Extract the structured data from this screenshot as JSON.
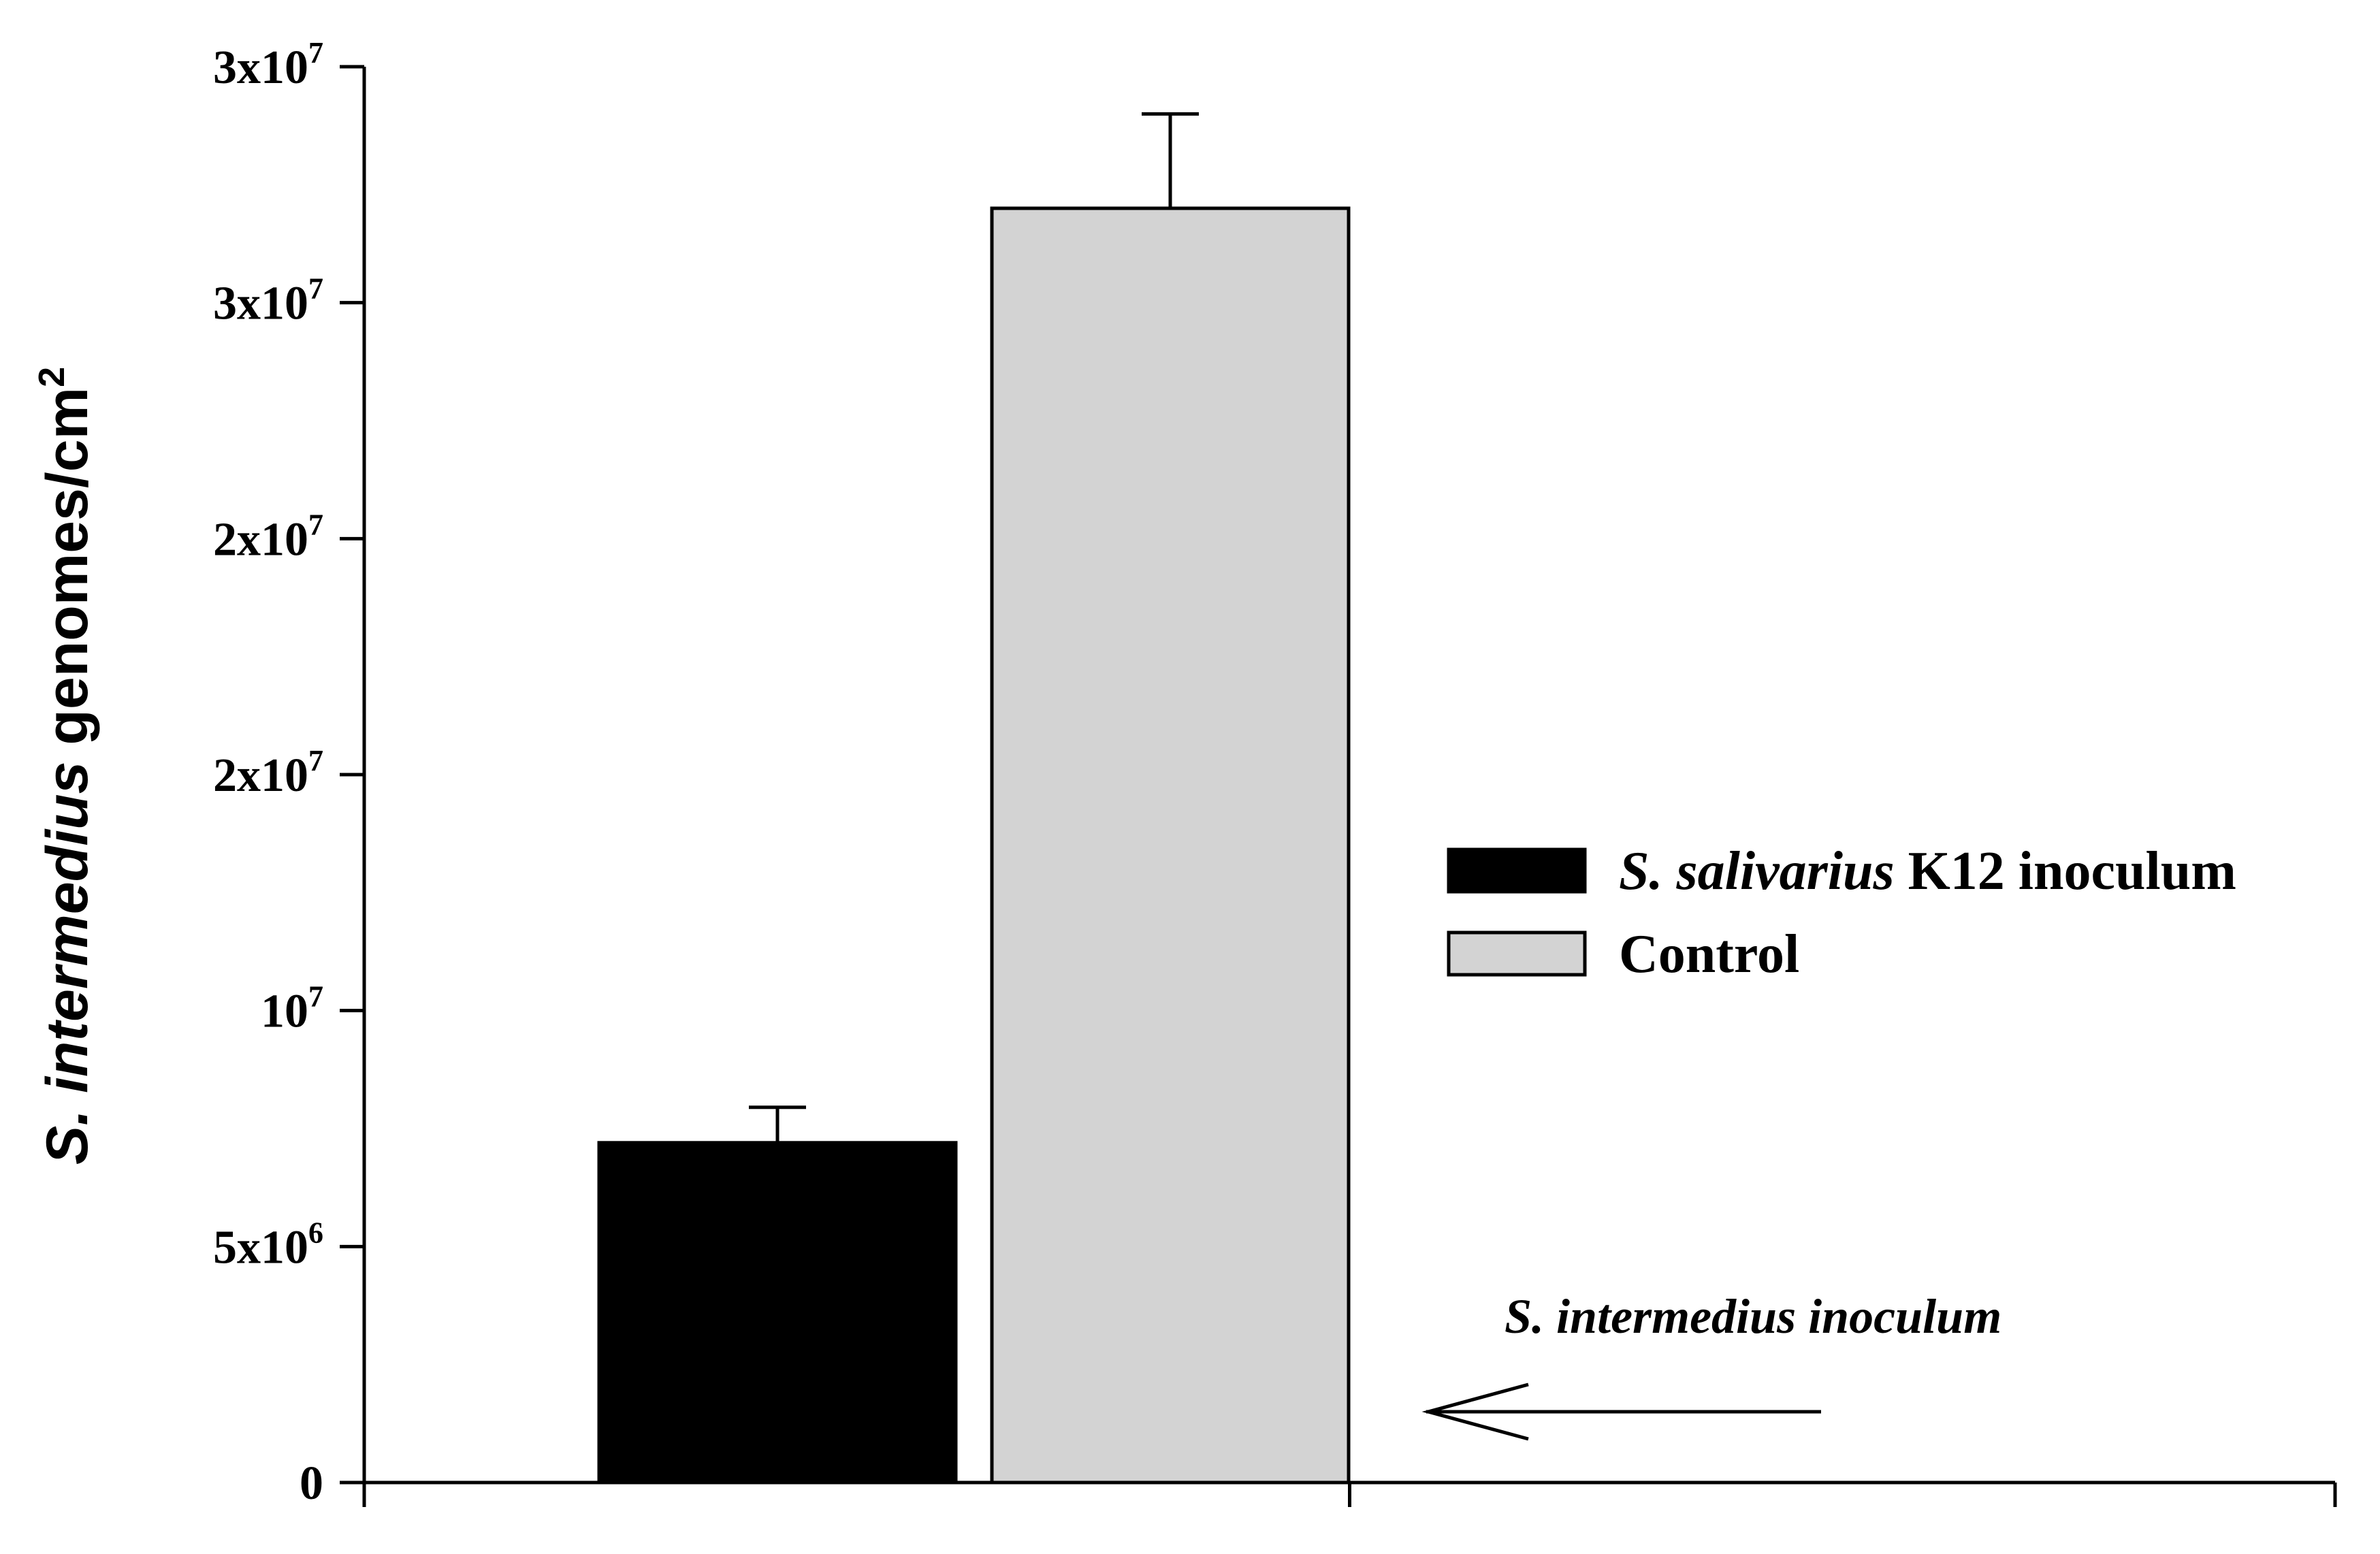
{
  "chart_data": {
    "type": "bar",
    "categories": [
      "S. salivarius K12 inoculum",
      "Control"
    ],
    "values": [
      7200000,
      27000000
    ],
    "error_upper": [
      7950000,
      29000000
    ],
    "colors": [
      "#000000",
      "#d3d3d3"
    ],
    "ylim": [
      0,
      30000000
    ],
    "yticks": [
      {
        "value": 0,
        "base": "0",
        "exp": ""
      },
      {
        "value": 5000000,
        "base": "5x10",
        "exp": "6"
      },
      {
        "value": 10000000,
        "base": "10",
        "exp": "7"
      },
      {
        "value": 15000000,
        "base": "2x10",
        "exp": "7"
      },
      {
        "value": 20000000,
        "base": "2x10",
        "exp": "7"
      },
      {
        "value": 25000000,
        "base": "3x10",
        "exp": "7"
      },
      {
        "value": 30000000,
        "base": "3x10",
        "exp": "7"
      }
    ],
    "ylabel": {
      "italic": "S. intermedius",
      "rest": " genomes/cm",
      "sup": "2"
    },
    "legend": [
      {
        "italic": "S. salivarius",
        "rest": " K12 inoculum",
        "color": "#000000"
      },
      {
        "italic": "",
        "rest": "Control",
        "color": "#d3d3d3"
      }
    ],
    "legend_position": "right",
    "annotation": {
      "text": "S. intermedius inoculum",
      "value": 1500000,
      "arrow": "left"
    },
    "grid": false
  }
}
